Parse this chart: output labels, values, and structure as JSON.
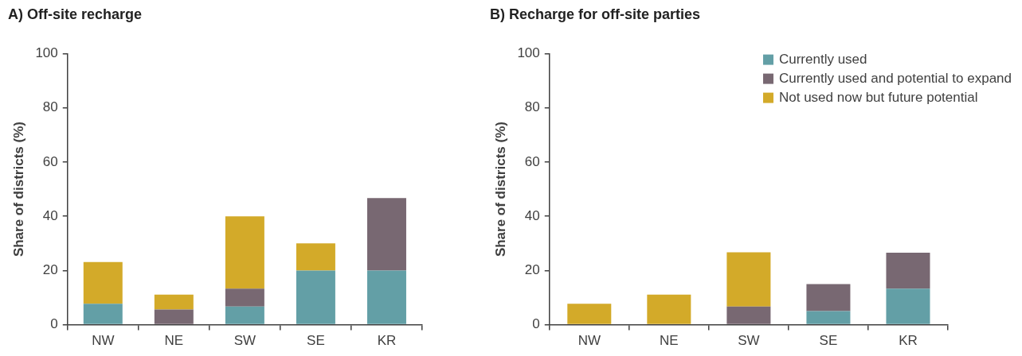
{
  "chart_data": [
    {
      "type": "bar",
      "title": "A) Off-site recharge",
      "ylabel": "Share of districts (%)",
      "stacked": true,
      "categories": [
        "NW",
        "NE",
        "SW",
        "SE",
        "KR"
      ],
      "ylim": [
        0,
        100
      ],
      "yticks": [
        0,
        20,
        40,
        60,
        80,
        100
      ],
      "legend": false,
      "series": [
        {
          "color": "#639fa6",
          "values": [
            7.7,
            0,
            6.7,
            20,
            20
          ]
        },
        {
          "color": "#786872",
          "values": [
            0,
            5.6,
            6.6,
            0,
            26.7
          ]
        },
        {
          "color": "#d3aa29",
          "values": [
            15.4,
            5.5,
            26.7,
            10,
            0
          ]
        }
      ]
    },
    {
      "type": "bar",
      "title": "B) Recharge for off-site parties",
      "ylabel": "Share of districts (%)",
      "stacked": true,
      "categories": [
        "NW",
        "NE",
        "SW",
        "SE",
        "KR"
      ],
      "ylim": [
        0,
        100
      ],
      "yticks": [
        0,
        20,
        40,
        60,
        80,
        100
      ],
      "legend": "top right",
      "series": [
        {
          "name": "Currently used",
          "color": "#639fa6",
          "values": [
            0,
            0,
            0,
            5,
            13.3
          ]
        },
        {
          "name": "Currently used and potential to expand",
          "color": "#786872",
          "values": [
            0,
            0,
            6.7,
            10,
            13.3
          ]
        },
        {
          "name": "Not used now but future potential",
          "color": "#d3aa29",
          "values": [
            7.7,
            11.1,
            20,
            0,
            0
          ]
        }
      ]
    }
  ]
}
